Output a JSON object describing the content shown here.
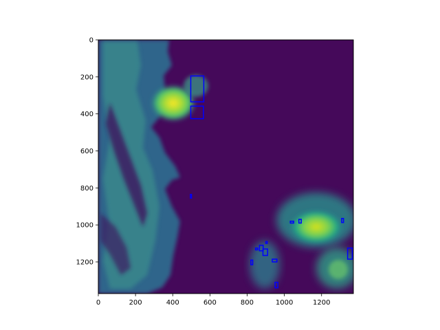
{
  "chart_data": {
    "type": "heatmap",
    "colormap": "viridis",
    "image_extent": {
      "x": [
        0,
        1371
      ],
      "y": [
        1371,
        0
      ]
    },
    "x_ticks": [
      0,
      200,
      400,
      600,
      800,
      1000,
      1200
    ],
    "y_ticks": [
      0,
      200,
      400,
      600,
      800,
      1000,
      1200
    ],
    "x_tick_labels": [
      "0",
      "200",
      "400",
      "600",
      "800",
      "1000",
      "1200"
    ],
    "y_tick_labels": [
      "0",
      "200",
      "400",
      "600",
      "800",
      "1000",
      "1200"
    ],
    "title": "",
    "xlabel": "",
    "ylabel": "",
    "grid": false,
    "overlay_boxes_color": "#0000ff",
    "overlay_boxes": [
      {
        "x": 497,
        "y": 195,
        "w": 70,
        "h": 140
      },
      {
        "x": 497,
        "y": 358,
        "w": 68,
        "h": 68
      },
      {
        "x": 1078,
        "y": 970,
        "w": 13,
        "h": 20
      },
      {
        "x": 1032,
        "y": 980,
        "w": 18,
        "h": 10
      },
      {
        "x": 1308,
        "y": 965,
        "w": 10,
        "h": 22
      },
      {
        "x": 1340,
        "y": 1125,
        "w": 25,
        "h": 60
      },
      {
        "x": 866,
        "y": 1110,
        "w": 20,
        "h": 30
      },
      {
        "x": 885,
        "y": 1130,
        "w": 25,
        "h": 35
      },
      {
        "x": 845,
        "y": 1125,
        "w": 12,
        "h": 10
      },
      {
        "x": 900,
        "y": 1090,
        "w": 8,
        "h": 10
      },
      {
        "x": 820,
        "y": 1190,
        "w": 10,
        "h": 25
      },
      {
        "x": 935,
        "y": 1185,
        "w": 25,
        "h": 15
      },
      {
        "x": 950,
        "y": 1310,
        "w": 15,
        "h": 30
      },
      {
        "x": 495,
        "y": 835,
        "w": 6,
        "h": 20
      }
    ],
    "color_map_stops": [
      "#440154",
      "#46327e",
      "#365c8d",
      "#277f8e",
      "#1fa187",
      "#4ac16d",
      "#a0da39",
      "#fde725"
    ]
  }
}
